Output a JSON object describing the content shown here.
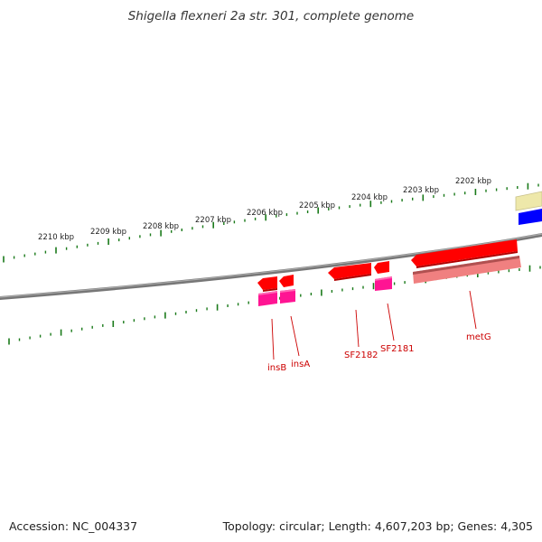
{
  "title": "Shigella flexneri 2a str. 301, complete genome",
  "footer": {
    "accession": "Accession: NC_004337",
    "stats": "Topology: circular; Length: 4,607,203 bp; Genes: 4,305"
  },
  "scale": {
    "labels": [
      "2210 kbp",
      "2209 kbp",
      "2208 kbp",
      "2207 kbp",
      "2206 kbp",
      "2205 kbp",
      "2204 kbp",
      "2203 kbp",
      "2202 kbp"
    ]
  },
  "genes": [
    {
      "name": "insB"
    },
    {
      "name": "insA"
    },
    {
      "name": "SF2182"
    },
    {
      "name": "SF2181"
    },
    {
      "name": "metG"
    }
  ],
  "colors": {
    "backbone": "#777777",
    "tick": "#1a7a1a",
    "gene": "#ff0000",
    "cds": "#ff1493",
    "rna": "#f08080",
    "label": "#cc0000",
    "feature_yellow": "#eee8aa",
    "feature_blue": "#0000ff"
  }
}
